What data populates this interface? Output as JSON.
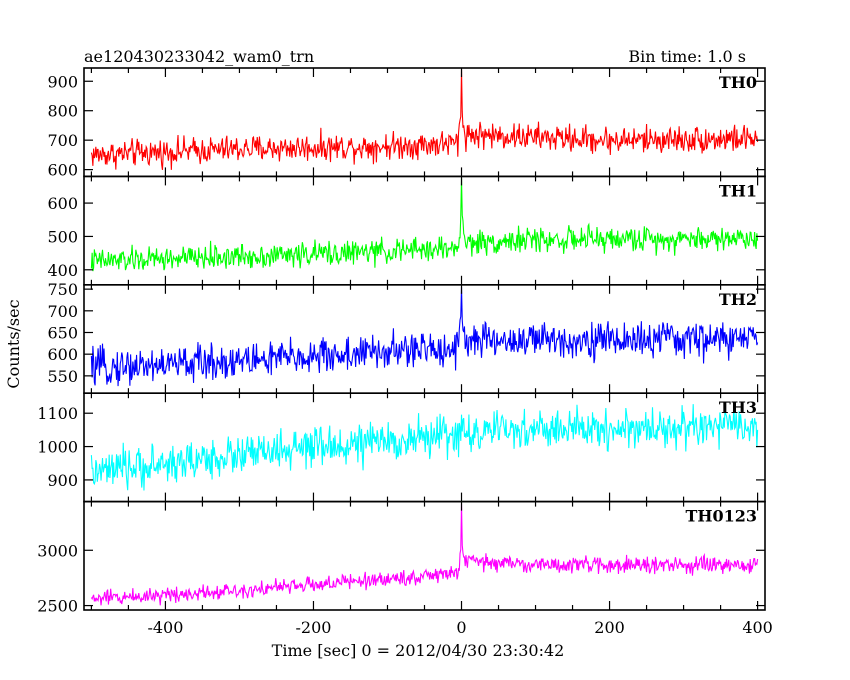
{
  "header": {
    "title": "ae120430233042_wam0_trn",
    "bin_time": "Bin time: 1.0 s"
  },
  "chart_data": {
    "type": "line",
    "x_axis": {
      "label": "Time [sec] 0 = 2012/04/30 23:30:42",
      "range": [
        -510,
        410
      ],
      "ticks": [
        -400,
        -200,
        0,
        200,
        400
      ]
    },
    "y_axis": {
      "label": "Counts/sec"
    },
    "bin_width_s": 1.0,
    "x_start": -500,
    "x_end": 400,
    "panels": [
      {
        "name": "TH0",
        "color": "#ff0000",
        "ylim": [
          577,
          945
        ],
        "yticks": [
          600,
          700,
          800,
          900
        ],
        "baseline": [
          [
            -500,
            650
          ],
          [
            -300,
            670
          ],
          [
            -100,
            680
          ],
          [
            -5,
            690
          ],
          [
            0,
            800
          ],
          [
            5,
            720
          ],
          [
            50,
            715
          ],
          [
            200,
            700
          ],
          [
            400,
            705
          ]
        ],
        "noise_amplitude": 35,
        "peak": {
          "x": 0,
          "y": 940
        }
      },
      {
        "name": "TH1",
        "color": "#00ff00",
        "ylim": [
          355,
          680
        ],
        "yticks": [
          400,
          500,
          600
        ],
        "baseline": [
          [
            -500,
            425
          ],
          [
            -300,
            440
          ],
          [
            -100,
            455
          ],
          [
            -5,
            465
          ],
          [
            0,
            560
          ],
          [
            5,
            480
          ],
          [
            100,
            490
          ],
          [
            400,
            495
          ]
        ],
        "noise_amplitude": 28,
        "peak": {
          "x": 0,
          "y": 675
        }
      },
      {
        "name": "TH2",
        "color": "#0000ff",
        "ylim": [
          510,
          760
        ],
        "yticks": [
          550,
          600,
          650,
          700,
          750
        ],
        "baseline": [
          [
            -500,
            568
          ],
          [
            -300,
            585
          ],
          [
            -150,
            600
          ],
          [
            -5,
            615
          ],
          [
            0,
            700
          ],
          [
            5,
            630
          ],
          [
            100,
            632
          ],
          [
            400,
            635
          ]
        ],
        "noise_amplitude": 32,
        "peak": {
          "x": 0,
          "y": 755
        }
      },
      {
        "name": "TH3",
        "color": "#00ffff",
        "ylim": [
          835,
          1160
        ],
        "yticks": [
          900,
          1000,
          1100
        ],
        "baseline": [
          [
            -500,
            920
          ],
          [
            -300,
            975
          ],
          [
            -100,
            1015
          ],
          [
            0,
            1040
          ],
          [
            100,
            1050
          ],
          [
            400,
            1060
          ]
        ],
        "noise_amplitude": 45,
        "peak": null
      },
      {
        "name": "TH0123",
        "color": "#ff00ff",
        "ylim": [
          2460,
          3440
        ],
        "yticks": [
          2500,
          3000
        ],
        "baseline": [
          [
            -500,
            2560
          ],
          [
            -300,
            2640
          ],
          [
            -100,
            2740
          ],
          [
            -5,
            2790
          ],
          [
            0,
            3050
          ],
          [
            5,
            2900
          ],
          [
            100,
            2870
          ],
          [
            400,
            2860
          ]
        ],
        "noise_amplitude": 55,
        "peak": {
          "x": 0,
          "y": 3420
        }
      }
    ]
  }
}
